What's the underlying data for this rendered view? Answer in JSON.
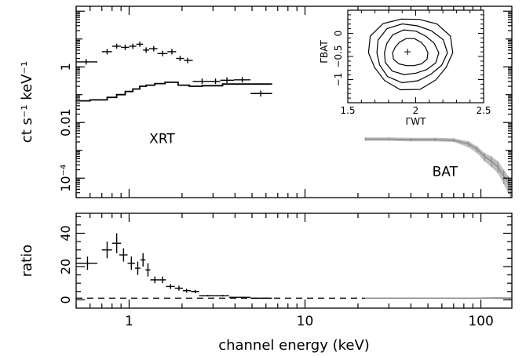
{
  "chart_data": [
    {
      "id": "spectrum",
      "type": "line",
      "xscale": "log",
      "yscale": "log",
      "xlim": [
        0.5,
        150
      ],
      "ylim": [
        2e-05,
        150
      ],
      "ylabel": "ct s⁻¹ keV⁻¹",
      "yticks": [
        {
          "value": 1,
          "label": "1"
        },
        {
          "value": 0.01,
          "label": "0.01"
        },
        {
          "value": 0.0001,
          "label": "10⁻⁴"
        }
      ],
      "annotations": [
        {
          "text": "XRT",
          "x": 1.6,
          "y": 0.0018
        },
        {
          "text": "BAT",
          "x": 65,
          "y": 0.00012
        }
      ],
      "series": [
        {
          "type": "step",
          "color": "#000000",
          "steps": [
            {
              "x0": 0.5,
              "x1": 0.6,
              "y": 0.06
            },
            {
              "x0": 0.6,
              "x1": 0.75,
              "y": 0.065
            },
            {
              "x0": 0.75,
              "x1": 0.85,
              "y": 0.08
            },
            {
              "x0": 0.85,
              "x1": 0.95,
              "y": 0.1
            },
            {
              "x0": 0.95,
              "x1": 1.05,
              "y": 0.13
            },
            {
              "x0": 1.05,
              "x1": 1.15,
              "y": 0.16
            },
            {
              "x0": 1.15,
              "x1": 1.25,
              "y": 0.2
            },
            {
              "x0": 1.25,
              "x1": 1.4,
              "y": 0.22
            },
            {
              "x0": 1.4,
              "x1": 1.6,
              "y": 0.25
            },
            {
              "x0": 1.6,
              "x1": 1.9,
              "y": 0.28
            },
            {
              "x0": 1.9,
              "x1": 2.2,
              "y": 0.22
            },
            {
              "x0": 2.2,
              "x1": 2.6,
              "y": 0.2
            },
            {
              "x0": 2.6,
              "x1": 3.4,
              "y": 0.21
            },
            {
              "x0": 3.4,
              "x1": 6.5,
              "y": 0.24
            }
          ]
        },
        {
          "type": "errorbar",
          "color": "#000000",
          "points": [
            {
              "x": 0.57,
              "xlo": 0.5,
              "xhi": 0.66,
              "y": 1.5,
              "ylo": 1.2,
              "yhi": 1.9
            },
            {
              "x": 0.75,
              "xlo": 0.7,
              "xhi": 0.8,
              "y": 3.5,
              "ylo": 2.8,
              "yhi": 4.4
            },
            {
              "x": 0.85,
              "xlo": 0.8,
              "xhi": 0.9,
              "y": 5.5,
              "ylo": 4.5,
              "yhi": 6.8
            },
            {
              "x": 0.95,
              "xlo": 0.9,
              "xhi": 1.0,
              "y": 5.0,
              "ylo": 4.0,
              "yhi": 6.3
            },
            {
              "x": 1.05,
              "xlo": 1.0,
              "xhi": 1.1,
              "y": 5.5,
              "ylo": 4.4,
              "yhi": 6.8
            },
            {
              "x": 1.15,
              "xlo": 1.1,
              "xhi": 1.2,
              "y": 6.5,
              "ylo": 5.2,
              "yhi": 8.0
            },
            {
              "x": 1.25,
              "xlo": 1.2,
              "xhi": 1.3,
              "y": 4.0,
              "ylo": 3.2,
              "yhi": 5.0
            },
            {
              "x": 1.38,
              "xlo": 1.3,
              "xhi": 1.45,
              "y": 4.5,
              "ylo": 3.6,
              "yhi": 5.6
            },
            {
              "x": 1.55,
              "xlo": 1.45,
              "xhi": 1.65,
              "y": 3.0,
              "ylo": 2.4,
              "yhi": 3.8
            },
            {
              "x": 1.75,
              "xlo": 1.65,
              "xhi": 1.85,
              "y": 3.5,
              "ylo": 2.8,
              "yhi": 4.4
            },
            {
              "x": 1.95,
              "xlo": 1.85,
              "xhi": 2.05,
              "y": 2.0,
              "ylo": 1.6,
              "yhi": 2.5
            },
            {
              "x": 2.15,
              "xlo": 2.05,
              "xhi": 2.3,
              "y": 1.7,
              "ylo": 1.35,
              "yhi": 2.1
            },
            {
              "x": 2.6,
              "xlo": 2.3,
              "xhi": 2.9,
              "y": 0.3,
              "ylo": 0.24,
              "yhi": 0.38
            },
            {
              "x": 3.1,
              "xlo": 2.9,
              "xhi": 3.3,
              "y": 0.3,
              "ylo": 0.24,
              "yhi": 0.38
            },
            {
              "x": 3.6,
              "xlo": 3.3,
              "xhi": 3.95,
              "y": 0.33,
              "ylo": 0.26,
              "yhi": 0.42
            },
            {
              "x": 4.4,
              "xlo": 3.95,
              "xhi": 4.9,
              "y": 0.34,
              "ylo": 0.27,
              "yhi": 0.43
            },
            {
              "x": 5.6,
              "xlo": 4.9,
              "xhi": 6.5,
              "y": 0.11,
              "ylo": 0.085,
              "yhi": 0.14
            }
          ]
        },
        {
          "type": "errorband",
          "color": "#a8a8a8",
          "points": [
            {
              "x": 22,
              "y": 0.0025,
              "ylo": 0.0022,
              "yhi": 0.0029
            },
            {
              "x": 30,
              "y": 0.0025,
              "ylo": 0.0022,
              "yhi": 0.0029
            },
            {
              "x": 40,
              "y": 0.0024,
              "ylo": 0.0021,
              "yhi": 0.0028
            },
            {
              "x": 55,
              "y": 0.0024,
              "ylo": 0.0021,
              "yhi": 0.0028
            },
            {
              "x": 70,
              "y": 0.0023,
              "ylo": 0.002,
              "yhi": 0.0027
            },
            {
              "x": 85,
              "y": 0.0017,
              "ylo": 0.0013,
              "yhi": 0.0021
            },
            {
              "x": 95,
              "y": 0.0011,
              "ylo": 0.0008,
              "yhi": 0.0014
            },
            {
              "x": 105,
              "y": 0.0006,
              "ylo": 0.0004,
              "yhi": 0.0008
            },
            {
              "x": 115,
              "y": 0.0004,
              "ylo": 0.00025,
              "yhi": 0.0006
            },
            {
              "x": 125,
              "y": 0.00025,
              "ylo": 0.00015,
              "yhi": 0.0004
            },
            {
              "x": 135,
              "y": 0.00012,
              "ylo": 6e-05,
              "yhi": 0.0002
            },
            {
              "x": 143,
              "y": 7e-05,
              "ylo": 3e-05,
              "yhi": 0.00012
            },
            {
              "x": 148,
              "y": 3e-05,
              "ylo": 2e-05,
              "yhi": 6e-05
            }
          ]
        }
      ]
    },
    {
      "id": "ratio",
      "type": "line",
      "xscale": "log",
      "xlim": [
        0.5,
        150
      ],
      "ylim": [
        -5,
        52
      ],
      "xlabel": "channel energy (keV)",
      "ylabel": "ratio",
      "xticks": [
        {
          "value": 1,
          "label": "1"
        },
        {
          "value": 10,
          "label": "10"
        },
        {
          "value": 100,
          "label": "100"
        }
      ],
      "yticks": [
        {
          "value": 0,
          "label": "0"
        },
        {
          "value": 20,
          "label": "20"
        },
        {
          "value": 40,
          "label": "40"
        }
      ],
      "reference_line": {
        "y": 1,
        "style": "dashed"
      },
      "series": [
        {
          "type": "errorbar",
          "color": "#000000",
          "points": [
            {
              "x": 0.58,
              "xlo": 0.5,
              "xhi": 0.66,
              "y": 22,
              "ylo": 18,
              "yhi": 26
            },
            {
              "x": 0.75,
              "xlo": 0.7,
              "xhi": 0.8,
              "y": 30,
              "ylo": 25,
              "yhi": 35
            },
            {
              "x": 0.85,
              "xlo": 0.8,
              "xhi": 0.9,
              "y": 34,
              "ylo": 28,
              "yhi": 40
            },
            {
              "x": 0.93,
              "xlo": 0.88,
              "xhi": 0.98,
              "y": 27,
              "ylo": 23,
              "yhi": 31
            },
            {
              "x": 1.03,
              "xlo": 0.98,
              "xhi": 1.08,
              "y": 22,
              "ylo": 18,
              "yhi": 26
            },
            {
              "x": 1.12,
              "xlo": 1.08,
              "xhi": 1.16,
              "y": 19,
              "ylo": 15,
              "yhi": 23
            },
            {
              "x": 1.2,
              "xlo": 1.16,
              "xhi": 1.24,
              "y": 24,
              "ylo": 20,
              "yhi": 28
            },
            {
              "x": 1.28,
              "xlo": 1.24,
              "xhi": 1.32,
              "y": 18,
              "ylo": 14,
              "yhi": 22
            },
            {
              "x": 1.4,
              "xlo": 1.32,
              "xhi": 1.48,
              "y": 12,
              "ylo": 10,
              "yhi": 14
            },
            {
              "x": 1.55,
              "xlo": 1.48,
              "xhi": 1.62,
              "y": 12,
              "ylo": 10,
              "yhi": 14
            },
            {
              "x": 1.72,
              "xlo": 1.62,
              "xhi": 1.82,
              "y": 8,
              "ylo": 6.5,
              "yhi": 9.5
            },
            {
              "x": 1.92,
              "xlo": 1.82,
              "xhi": 2.02,
              "y": 7,
              "ylo": 5.5,
              "yhi": 8.5
            },
            {
              "x": 2.12,
              "xlo": 2.02,
              "xhi": 2.25,
              "y": 5.5,
              "ylo": 4.3,
              "yhi": 6.7
            },
            {
              "x": 2.38,
              "xlo": 2.25,
              "xhi": 2.5,
              "y": 5,
              "ylo": 4,
              "yhi": 6
            },
            {
              "x": 2.8,
              "xlo": 2.5,
              "xhi": 3.1,
              "y": 2.5,
              "ylo": 2,
              "yhi": 3
            },
            {
              "x": 3.4,
              "xlo": 3.1,
              "xhi": 3.7,
              "y": 2.5,
              "ylo": 2,
              "yhi": 3
            },
            {
              "x": 4.3,
              "xlo": 3.7,
              "xhi": 4.9,
              "y": 1.5,
              "ylo": 1.2,
              "yhi": 1.8
            },
            {
              "x": 5.7,
              "xlo": 4.9,
              "xhi": 6.5,
              "y": 1,
              "ylo": 0.8,
              "yhi": 1.2
            }
          ]
        },
        {
          "type": "errorband",
          "color": "#a8a8a8",
          "points": [
            {
              "x": 22,
              "y": 1,
              "ylo": 0.8,
              "yhi": 1.2
            },
            {
              "x": 50,
              "y": 1,
              "ylo": 0.8,
              "yhi": 1.2
            },
            {
              "x": 90,
              "y": 1,
              "ylo": 0.7,
              "yhi": 1.3
            },
            {
              "x": 120,
              "y": 1.1,
              "ylo": 0.6,
              "yhi": 1.6
            },
            {
              "x": 148,
              "y": 1,
              "ylo": 0.4,
              "yhi": 1.6
            }
          ]
        }
      ]
    },
    {
      "id": "contour-inset",
      "type": "contour",
      "xlim": [
        1.5,
        2.5
      ],
      "ylim": [
        -1.5,
        0.5
      ],
      "xlabel": "ΓWT",
      "ylabel": "ΓBAT",
      "xticks": [
        {
          "value": 1.5,
          "label": "1.5"
        },
        {
          "value": 2,
          "label": "2"
        },
        {
          "value": 2.5,
          "label": "2.5"
        }
      ],
      "yticks": [
        {
          "value": 0,
          "label": "0"
        },
        {
          "value": -0.5,
          "label": "−0.5"
        },
        {
          "value": -1,
          "label": "−1"
        }
      ],
      "best_fit": {
        "x": 1.94,
        "y": -0.4
      },
      "contours": [
        {
          "cx": 1.96,
          "cy": -0.42,
          "rx": 0.13,
          "ry": 0.3
        },
        {
          "cx": 1.96,
          "cy": -0.42,
          "rx": 0.2,
          "ry": 0.48
        },
        {
          "cx": 1.96,
          "cy": -0.42,
          "rx": 0.26,
          "ry": 0.63
        },
        {
          "cx": 1.96,
          "cy": -0.42,
          "rx": 0.31,
          "ry": 0.78
        }
      ]
    }
  ]
}
